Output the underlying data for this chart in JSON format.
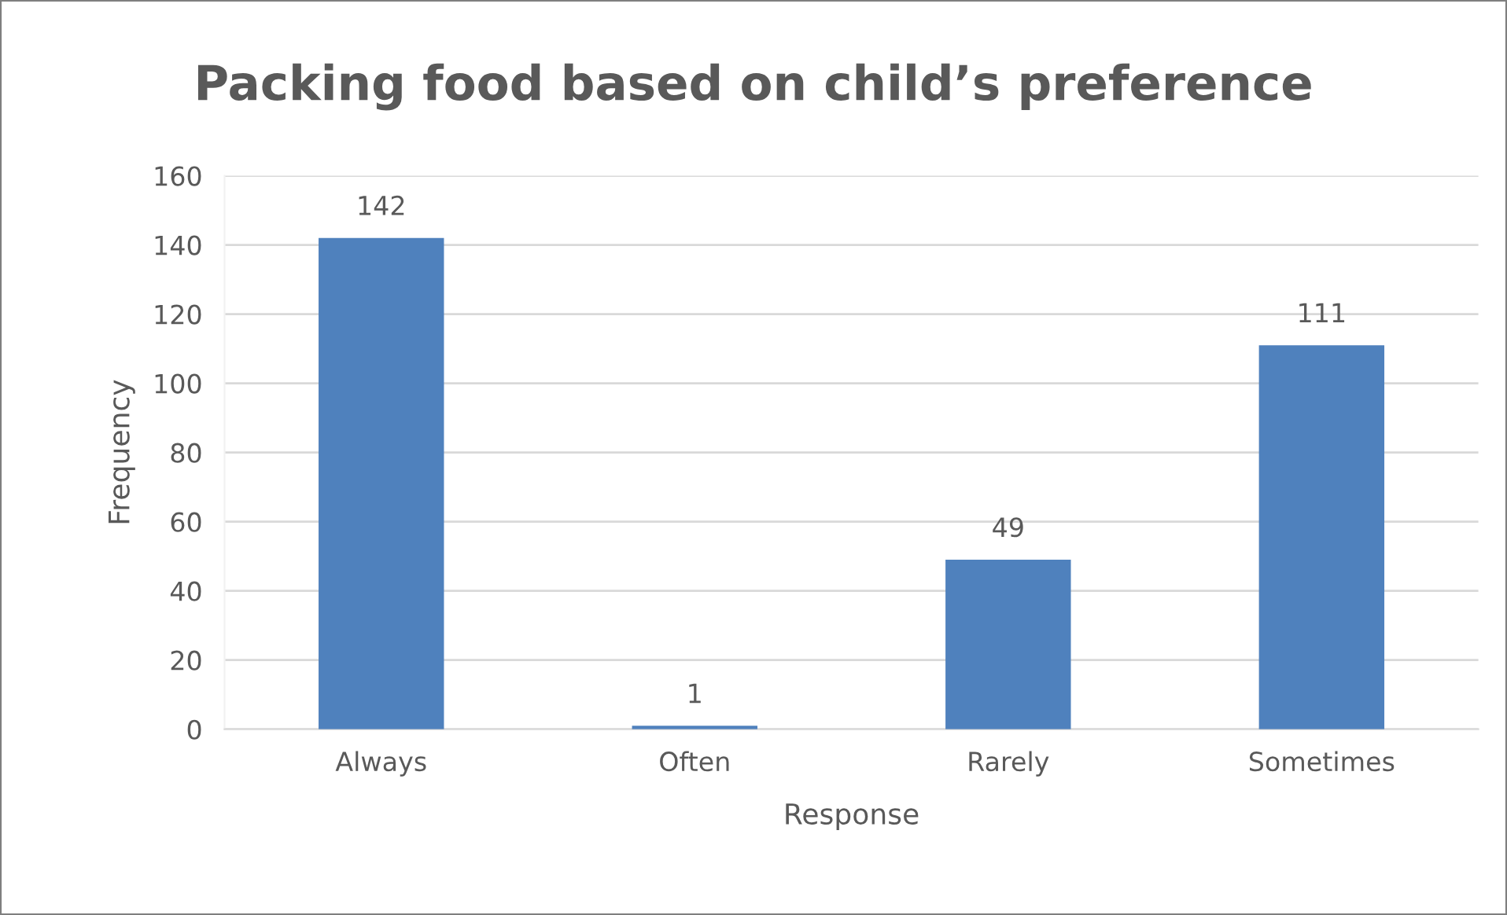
{
  "chart_data": {
    "type": "bar",
    "title": "Packing food based on child’s preference",
    "xlabel": "Response",
    "ylabel": "Frequency",
    "categories": [
      "Always",
      "Often",
      "Rarely",
      "Sometimes"
    ],
    "values": [
      142,
      1,
      49,
      111
    ],
    "color": "#4f81bd",
    "ylim": [
      0,
      160
    ],
    "yticks": [
      0,
      20,
      40,
      60,
      80,
      100,
      120,
      140,
      160
    ],
    "grid": "y",
    "data_labels": true
  }
}
